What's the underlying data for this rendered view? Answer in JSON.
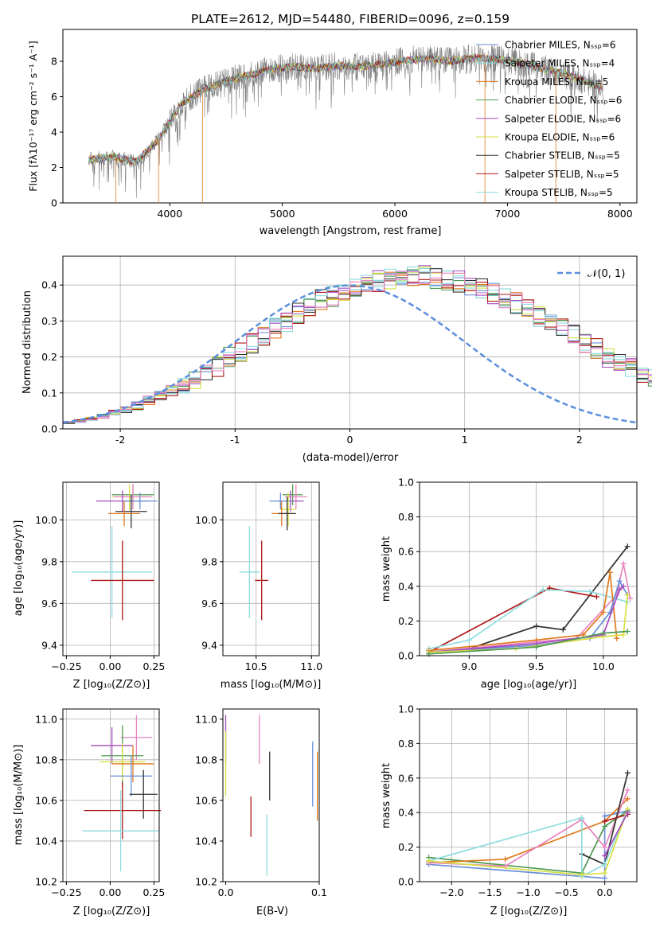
{
  "figure_title": "PLATE=2612, MJD=54480, FIBERID=0096, z=0.159",
  "colors": {
    "chabrier_miles": "#6a8fd8",
    "salpeter_miles": "#7fd6d6",
    "kroupa_miles": "#e07a1f",
    "chabrier_elodie": "#4f9a52",
    "salpeter_elodie": "#a64bc0",
    "kroupa_elodie": "#d8e040",
    "chabrier_stelib": "#333333",
    "salpeter_stelib": "#b01818",
    "kroupa_stelib": "#8fdce0",
    "pink": "#e884c0",
    "data_gray": "#808080",
    "normal_dashed": "#5b8fdc",
    "grid": "#b0b0b0"
  },
  "chart_data": [
    {
      "id": "spectrum",
      "type": "line",
      "xlabel": "wavelength [Angstrom, rest frame]",
      "ylabel": "Flux [fλ10⁻¹⁷ erg cm⁻² s⁻¹ A⁻¹]",
      "xlim": [
        3050,
        8150
      ],
      "ylim": [
        0,
        9.8
      ],
      "xticks": [
        4000,
        5000,
        6000,
        7000,
        8000
      ],
      "yticks": [
        0,
        2,
        4,
        6,
        8
      ],
      "grid": false,
      "legend_position": "upper-right",
      "legend": [
        {
          "label": "Chabrier MILES, Nₛₛₚ=6",
          "color": "#6a8fd8"
        },
        {
          "label": "Salpeter MILES, Nₛₛₚ=4",
          "color": "#7fd6d6"
        },
        {
          "label": "Kroupa MILES, Nₛₛₚ=5",
          "color": "#e07a1f"
        },
        {
          "label": "Chabrier ELODIE, Nₛₛₚ=6",
          "color": "#4f9a52"
        },
        {
          "label": "Salpeter ELODIE, Nₛₛₚ=6",
          "color": "#a64bc0"
        },
        {
          "label": "Kroupa ELODIE, Nₛₛₚ=6",
          "color": "#d8e040"
        },
        {
          "label": "Chabrier STELIB, Nₛₛₚ=5",
          "color": "#333333"
        },
        {
          "label": "Salpeter STELIB, Nₛₛₚ=5",
          "color": "#b01818"
        },
        {
          "label": "Kroupa STELIB, Nₛₛₚ=5",
          "color": "#8fdce0"
        }
      ],
      "data_envelope": {
        "x": [
          3280,
          3500,
          3700,
          3900,
          4000,
          4100,
          4300,
          4500,
          4700,
          4900,
          5100,
          5300,
          5500,
          5700,
          5900,
          6100,
          6300,
          6500,
          6700,
          6900,
          7100,
          7300,
          7500,
          7700,
          7850
        ],
        "y": [
          2.45,
          2.6,
          2.3,
          3.6,
          4.6,
          5.6,
          6.4,
          6.9,
          7.2,
          7.55,
          7.7,
          7.6,
          7.75,
          7.7,
          7.85,
          8.05,
          8.15,
          8.0,
          8.2,
          8.15,
          7.95,
          7.6,
          7.3,
          6.85,
          6.5
        ]
      },
      "model_range": [
        3280,
        7850
      ]
    },
    {
      "id": "residuals",
      "type": "histogram",
      "xlabel": "(data-model)/error",
      "ylabel": "Normed distribution",
      "xlim": [
        -2.5,
        2.5
      ],
      "ylim": [
        0,
        0.48
      ],
      "xticks": [
        -2,
        -1,
        0,
        1,
        2
      ],
      "yticks": [
        0.0,
        0.1,
        0.2,
        0.3,
        0.4
      ],
      "grid": true,
      "legend_position": "upper-right",
      "legend_label": "𝒩(0, 1)",
      "bin_width": 0.1,
      "bins_start": -2.5,
      "base_profile": [
        0.018,
        0.022,
        0.028,
        0.035,
        0.045,
        0.055,
        0.065,
        0.078,
        0.09,
        0.105,
        0.12,
        0.135,
        0.155,
        0.175,
        0.2,
        0.215,
        0.235,
        0.26,
        0.28,
        0.3,
        0.32,
        0.34,
        0.36,
        0.37,
        0.385,
        0.395,
        0.405,
        0.41,
        0.415,
        0.42,
        0.425,
        0.425,
        0.42,
        0.415,
        0.41,
        0.4,
        0.39,
        0.375,
        0.36,
        0.35,
        0.33,
        0.315,
        0.29,
        0.28,
        0.26,
        0.24,
        0.225,
        0.2,
        0.185,
        0.17,
        0.155,
        0.14,
        0.125,
        0.11,
        0.1,
        0.09,
        0.078,
        0.065,
        0.055,
        0.045
      ],
      "series_colors": [
        "#6a8fd8",
        "#7fd6d6",
        "#e07a1f",
        "#4f9a52",
        "#a64bc0",
        "#d8e040",
        "#333333",
        "#b01818",
        "#8fdce0",
        "#e884c0"
      ]
    },
    {
      "id": "age_vs_Z",
      "type": "errorbar",
      "xlabel": "Z [log₁₀(Z/Z⊙)]",
      "ylabel": "age  [log₁₀(age/yr)]",
      "xlim": [
        -0.27,
        0.28
      ],
      "ylim": [
        9.35,
        10.18
      ],
      "xticks": [
        -0.25,
        0.0,
        0.25
      ],
      "xticklabels": [
        "−0.25",
        "0.00",
        "0.25"
      ],
      "yticks": [
        9.4,
        9.6,
        9.8,
        10.0
      ],
      "grid": true,
      "points": [
        {
          "x": 0.13,
          "y": 10.12,
          "xerr": 0.12,
          "yerr": 0.05,
          "color": "#4f9a52"
        },
        {
          "x": 0.11,
          "y": 10.11,
          "xerr": 0.1,
          "yerr": 0.06,
          "color": "#d8e040"
        },
        {
          "x": 0.13,
          "y": 10.11,
          "xerr": 0.11,
          "yerr": 0.06,
          "color": "#e884c0"
        },
        {
          "x": 0.07,
          "y": 10.09,
          "xerr": 0.15,
          "yerr": 0.05,
          "color": "#a64bc0"
        },
        {
          "x": 0.17,
          "y": 10.09,
          "xerr": 0.1,
          "yerr": 0.04,
          "color": "#6a8fd8"
        },
        {
          "x": 0.12,
          "y": 10.04,
          "xerr": 0.09,
          "yerr": 0.08,
          "color": "#333333"
        },
        {
          "x": 0.08,
          "y": 10.03,
          "xerr": 0.09,
          "yerr": 0.06,
          "color": "#e07a1f"
        },
        {
          "x": 0.01,
          "y": 9.75,
          "xerr": 0.23,
          "yerr": 0.22,
          "color": "#8fdce0"
        },
        {
          "x": 0.07,
          "y": 9.71,
          "xerr": 0.18,
          "yerr": 0.19,
          "color": "#b01818"
        }
      ]
    },
    {
      "id": "age_vs_mass",
      "type": "errorbar",
      "xlabel": "mass [log₁₀(M/M⊙)]",
      "xlim": [
        10.2,
        11.07
      ],
      "ylim": [
        9.35,
        10.18
      ],
      "xticks": [
        10.5,
        11.0
      ],
      "xticklabels": [
        "10.5",
        "11.0"
      ],
      "yticks": [
        9.4,
        9.6,
        9.8,
        10.0
      ],
      "grid": true,
      "points": [
        {
          "x": 10.83,
          "y": 10.12,
          "xerr": 0.09,
          "yerr": 0.05,
          "color": "#4f9a52"
        },
        {
          "x": 10.86,
          "y": 10.11,
          "xerr": 0.1,
          "yerr": 0.06,
          "color": "#e884c0"
        },
        {
          "x": 10.81,
          "y": 10.09,
          "xerr": 0.12,
          "yerr": 0.05,
          "color": "#a64bc0"
        },
        {
          "x": 10.72,
          "y": 10.09,
          "xerr": 0.1,
          "yerr": 0.04,
          "color": "#6a8fd8"
        },
        {
          "x": 10.79,
          "y": 10.05,
          "xerr": 0.07,
          "yerr": 0.08,
          "color": "#d8e040"
        },
        {
          "x": 10.73,
          "y": 10.03,
          "xerr": 0.09,
          "yerr": 0.06,
          "color": "#e07a1f"
        },
        {
          "x": 10.78,
          "y": 10.03,
          "xerr": 0.08,
          "yerr": 0.08,
          "color": "#333333"
        },
        {
          "x": 10.44,
          "y": 9.75,
          "xerr": 0.09,
          "yerr": 0.22,
          "color": "#8fdce0"
        },
        {
          "x": 10.55,
          "y": 9.71,
          "xerr": 0.06,
          "yerr": 0.19,
          "color": "#b01818"
        }
      ]
    },
    {
      "id": "weight_vs_age",
      "type": "line",
      "xlabel": "age  [log₁₀(age/yr)]",
      "ylabel": "mass weight",
      "xlim": [
        8.63,
        10.25
      ],
      "ylim": [
        0.0,
        1.0
      ],
      "xticks": [
        9.0,
        9.5,
        10.0
      ],
      "xticklabels": [
        "9.0",
        "9.5",
        "10.0"
      ],
      "yticks": [
        0.0,
        0.2,
        0.4,
        0.6,
        0.8,
        1.0
      ],
      "grid": true,
      "series": [
        {
          "color": "#333333",
          "points": [
            [
              8.7,
              0.02
            ],
            [
              9.0,
              0.04
            ],
            [
              9.5,
              0.17
            ],
            [
              9.7,
              0.15
            ],
            [
              10.18,
              0.63
            ]
          ]
        },
        {
          "color": "#b01818",
          "points": [
            [
              8.7,
              0.02
            ],
            [
              9.6,
              0.39
            ],
            [
              9.95,
              0.34
            ]
          ]
        },
        {
          "color": "#8fdce0",
          "points": [
            [
              8.7,
              0.04
            ],
            [
              9.0,
              0.09
            ],
            [
              9.55,
              0.38
            ],
            [
              9.9,
              0.37
            ],
            [
              10.18,
              0.31
            ]
          ]
        },
        {
          "color": "#e884c0",
          "points": [
            [
              8.7,
              0.02
            ],
            [
              9.5,
              0.08
            ],
            [
              9.8,
              0.1
            ],
            [
              10.1,
              0.35
            ],
            [
              10.15,
              0.53
            ],
            [
              10.2,
              0.33
            ]
          ]
        },
        {
          "color": "#e07a1f",
          "points": [
            [
              8.7,
              0.03
            ],
            [
              9.5,
              0.09
            ],
            [
              9.85,
              0.12
            ],
            [
              10.0,
              0.25
            ],
            [
              10.05,
              0.48
            ],
            [
              10.1,
              0.1
            ]
          ]
        },
        {
          "color": "#6a8fd8",
          "points": [
            [
              8.7,
              0.02
            ],
            [
              9.5,
              0.06
            ],
            [
              9.9,
              0.1
            ],
            [
              10.05,
              0.25
            ],
            [
              10.12,
              0.43
            ],
            [
              10.18,
              0.35
            ]
          ]
        },
        {
          "color": "#a64bc0",
          "points": [
            [
              8.7,
              0.02
            ],
            [
              9.5,
              0.07
            ],
            [
              10.0,
              0.12
            ],
            [
              10.12,
              0.38
            ],
            [
              10.15,
              0.4
            ]
          ]
        },
        {
          "color": "#d8e040",
          "points": [
            [
              8.7,
              0.02
            ],
            [
              9.35,
              0.04
            ],
            [
              10.0,
              0.11
            ],
            [
              10.15,
              0.12
            ],
            [
              10.18,
              0.35
            ]
          ]
        },
        {
          "color": "#4f9a52",
          "points": [
            [
              8.7,
              0.01
            ],
            [
              9.5,
              0.05
            ],
            [
              10.0,
              0.13
            ],
            [
              10.18,
              0.14
            ]
          ]
        }
      ]
    },
    {
      "id": "mass_vs_Z",
      "type": "errorbar",
      "xlabel": "Z [log₁₀(Z/Z⊙)]",
      "ylabel": "mass [log₁₀(M/M⊙)]",
      "xlim": [
        -0.27,
        0.28
      ],
      "ylim": [
        10.2,
        11.05
      ],
      "xticks": [
        -0.25,
        0.0,
        0.25
      ],
      "xticklabels": [
        "−0.25",
        "0.00",
        "0.25"
      ],
      "yticks": [
        10.2,
        10.4,
        10.6,
        10.8,
        11.0
      ],
      "grid": true,
      "points": [
        {
          "x": 0.15,
          "y": 10.91,
          "xerr": 0.09,
          "yerr": 0.11,
          "color": "#e884c0"
        },
        {
          "x": 0.01,
          "y": 10.87,
          "xerr": 0.12,
          "yerr": 0.09,
          "color": "#a64bc0"
        },
        {
          "x": 0.07,
          "y": 10.82,
          "xerr": 0.12,
          "yerr": 0.15,
          "color": "#4f9a52"
        },
        {
          "x": 0.07,
          "y": 10.79,
          "xerr": 0.13,
          "yerr": 0.09,
          "color": "#d8e040"
        },
        {
          "x": 0.13,
          "y": 10.78,
          "xerr": 0.12,
          "yerr": 0.09,
          "color": "#e07a1f"
        },
        {
          "x": 0.12,
          "y": 10.72,
          "xerr": 0.12,
          "yerr": 0.1,
          "color": "#6a8fd8"
        },
        {
          "x": 0.19,
          "y": 10.63,
          "xerr": 0.08,
          "yerr": 0.12,
          "color": "#333333"
        },
        {
          "x": 0.07,
          "y": 10.55,
          "xerr": 0.22,
          "yerr": 0.14,
          "color": "#b01818"
        },
        {
          "x": 0.06,
          "y": 10.45,
          "xerr": 0.22,
          "yerr": 0.2,
          "color": "#8fdce0"
        }
      ]
    },
    {
      "id": "mass_vs_ebv",
      "type": "errorbar",
      "xlabel": "E(B-V)",
      "xlim": [
        -0.003,
        0.1
      ],
      "ylim": [
        10.2,
        11.05
      ],
      "xticks": [
        0.0,
        0.1
      ],
      "xticklabels": [
        "0.0",
        "0.1"
      ],
      "yticks": [
        10.2,
        10.4,
        10.6,
        10.8,
        11.0
      ],
      "grid": false,
      "points": [
        {
          "x": 0.0,
          "y": 10.9,
          "xerr": 0.0,
          "yerr": 0.12,
          "color": "#a64bc0"
        },
        {
          "x": 0.0,
          "y": 10.78,
          "xerr": 0.0,
          "yerr": 0.16,
          "color": "#d8e040"
        },
        {
          "x": 0.036,
          "y": 10.9,
          "xerr": 0.0,
          "yerr": 0.12,
          "color": "#e884c0"
        },
        {
          "x": 0.047,
          "y": 10.72,
          "xerr": 0.0,
          "yerr": 0.12,
          "color": "#333333"
        },
        {
          "x": 0.027,
          "y": 10.52,
          "xerr": 0.0,
          "yerr": 0.1,
          "color": "#b01818"
        },
        {
          "x": 0.044,
          "y": 10.38,
          "xerr": 0.0,
          "yerr": 0.15,
          "color": "#8fdce0"
        },
        {
          "x": 0.093,
          "y": 10.73,
          "xerr": 0.0,
          "yerr": 0.16,
          "color": "#6a8fd8"
        },
        {
          "x": 0.098,
          "y": 10.67,
          "xerr": 0.0,
          "yerr": 0.17,
          "color": "#e07a1f"
        }
      ]
    },
    {
      "id": "weight_vs_Z",
      "type": "line",
      "xlabel": "Z [log₁₀(Z/Z⊙)]",
      "ylabel": "mass weight",
      "xlim": [
        -2.42,
        0.42
      ],
      "ylim": [
        0.0,
        1.0
      ],
      "xticks": [
        -2.0,
        -1.5,
        -1.0,
        -0.5,
        0.0
      ],
      "xticklabels": [
        "−2.0",
        "−1.5",
        "−1.0",
        "−0.5",
        "0.0"
      ],
      "yticks": [
        0.0,
        0.2,
        0.4,
        0.6,
        0.8,
        1.0
      ],
      "grid": true,
      "series": [
        {
          "color": "#6a8fd8",
          "points": [
            [
              -2.3,
              0.1
            ],
            [
              0.0,
              0.02
            ],
            [
              0.0,
              0.38
            ],
            [
              0.3,
              0.41
            ]
          ]
        },
        {
          "color": "#4f9a52",
          "points": [
            [
              -2.3,
              0.14
            ],
            [
              -0.3,
              0.05
            ],
            [
              0.0,
              0.32
            ],
            [
              0.3,
              0.41
            ]
          ]
        },
        {
          "color": "#e07a1f",
          "points": [
            [
              -2.3,
              0.11
            ],
            [
              -1.3,
              0.13
            ],
            [
              0.0,
              0.35
            ],
            [
              0.3,
              0.48
            ]
          ]
        },
        {
          "color": "#e884c0",
          "points": [
            [
              -2.3,
              0.11
            ],
            [
              -1.3,
              0.09
            ],
            [
              -0.3,
              0.36
            ],
            [
              0.0,
              0.2
            ],
            [
              0.3,
              0.53
            ]
          ]
        },
        {
          "color": "#333333",
          "points": [
            [
              -0.3,
              0.16
            ],
            [
              0.0,
              0.1
            ],
            [
              0.3,
              0.63
            ]
          ]
        },
        {
          "color": "#b01818",
          "points": [
            [
              0.0,
              0.35
            ],
            [
              0.3,
              0.39
            ]
          ]
        },
        {
          "color": "#8fdce0",
          "points": [
            [
              -2.3,
              0.12
            ],
            [
              -0.3,
              0.37
            ],
            [
              -0.3,
              0.03
            ],
            [
              0.0,
              0.1
            ],
            [
              0.3,
              0.42
            ]
          ]
        },
        {
          "color": "#d8e040",
          "points": [
            [
              -2.3,
              0.12
            ],
            [
              -0.3,
              0.04
            ],
            [
              0.0,
              0.05
            ],
            [
              0.3,
              0.42
            ]
          ]
        },
        {
          "color": "#a64bc0",
          "points": [
            [
              0.0,
              0.15
            ],
            [
              0.3,
              0.4
            ]
          ]
        }
      ]
    }
  ]
}
